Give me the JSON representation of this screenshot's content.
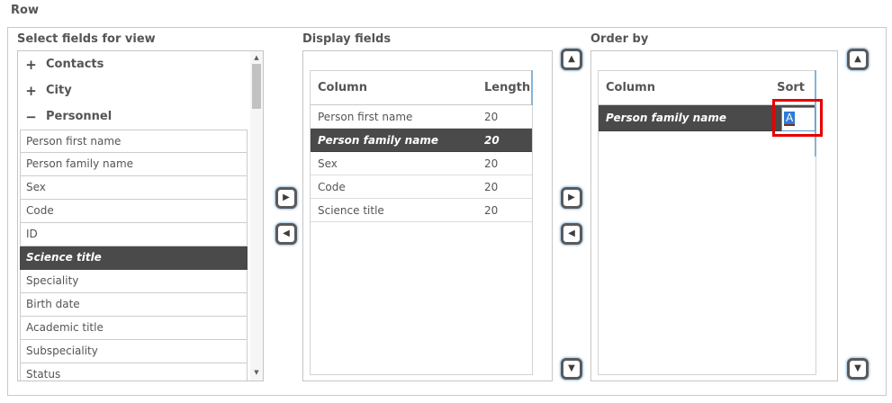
{
  "page": {
    "row_label": "Row"
  },
  "panels": {
    "select_fields": {
      "title": "Select fields for view",
      "tree": [
        {
          "label": "Contacts",
          "state": "collapsed",
          "icon": "+"
        },
        {
          "label": "City",
          "state": "collapsed",
          "icon": "+"
        },
        {
          "label": "Personnel",
          "state": "expanded",
          "icon": "−"
        }
      ],
      "fields": [
        "Person first name",
        "Person family name",
        "Sex",
        "Code",
        "ID",
        "Science title",
        "Speciality",
        "Birth date",
        "Academic title",
        "Subspeciality",
        "Status"
      ],
      "selected_field": "Science title"
    },
    "display_fields": {
      "title": "Display fields",
      "columns": [
        "Column",
        "Length"
      ],
      "rows": [
        {
          "column": "Person first name",
          "length": "20",
          "selected": false
        },
        {
          "column": "Person family name",
          "length": "20",
          "selected": true
        },
        {
          "column": "Sex",
          "length": "20",
          "selected": false
        },
        {
          "column": "Code",
          "length": "20",
          "selected": false
        },
        {
          "column": "Science title",
          "length": "20",
          "selected": false
        }
      ]
    },
    "order_by": {
      "title": "Order by",
      "columns": [
        "Column",
        "Sort"
      ],
      "rows": [
        {
          "column": "Person family name",
          "sort_value": "A",
          "selected": true,
          "editing": true
        }
      ]
    }
  },
  "controls": {
    "move_right_icon": "▶",
    "move_left_icon": "◀",
    "move_up_icon": "▲",
    "move_down_icon": "▼",
    "scroll_up_icon": "▲",
    "scroll_down_icon": "▼"
  },
  "annotation": {
    "type": "click-highlight-box",
    "color": "#e60000"
  },
  "colors": {
    "selected_row_bg": "#4a4a4a",
    "selected_row_text": "#ffffff",
    "edit_border_blue": "#5f94c4",
    "text_selection_blue": "#2e7ad6",
    "panel_border": "#c5c5c5",
    "label_text": "#555555"
  }
}
